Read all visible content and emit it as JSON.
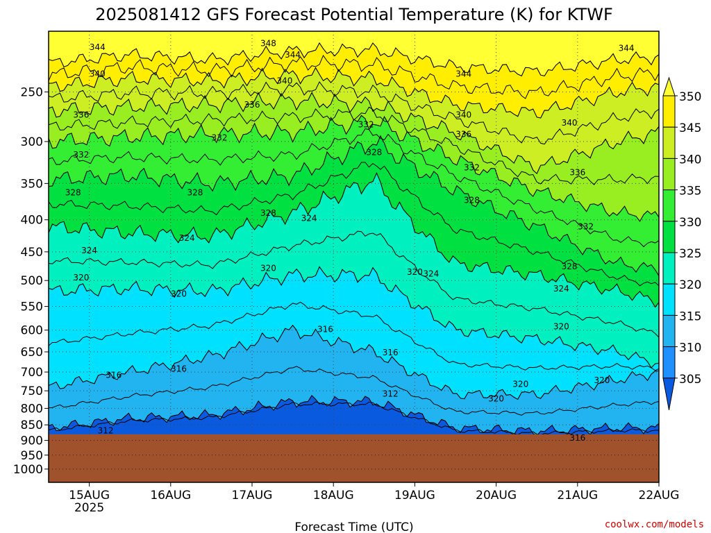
{
  "chart_data": {
    "type": "heatmap",
    "title": "2025081412 GFS Forecast Potential Temperature (K) for KTWF",
    "xlabel": "Forecast Time (UTC)",
    "ylabel": "",
    "y_scale": "log-pressure",
    "y_reversed": true,
    "y_ticks": [
      250,
      300,
      350,
      400,
      450,
      500,
      550,
      600,
      650,
      700,
      750,
      800,
      850,
      900,
      950,
      1000
    ],
    "ylim": [
      200,
      1050
    ],
    "x_ticks": [
      {
        "label": "15AUG",
        "sublabel": "2025",
        "day": 1
      },
      {
        "label": "16AUG",
        "sublabel": "",
        "day": 2
      },
      {
        "label": "17AUG",
        "sublabel": "",
        "day": 3
      },
      {
        "label": "18AUG",
        "sublabel": "",
        "day": 4
      },
      {
        "label": "19AUG",
        "sublabel": "",
        "day": 5
      },
      {
        "label": "20AUG",
        "sublabel": "",
        "day": 6
      },
      {
        "label": "21AUG",
        "sublabel": "",
        "day": 7
      },
      {
        "label": "22AUG",
        "sublabel": "",
        "day": 8
      }
    ],
    "xlim_days": [
      0.5,
      8.0
    ],
    "surface_pressure": 880,
    "surface_color": "#a0522d",
    "colorbar": {
      "levels": [
        "305",
        "310",
        "315",
        "320",
        "325",
        "330",
        "335",
        "340",
        "345",
        "350"
      ],
      "colors": [
        "#0a5ae0",
        "#1e90ff",
        "#22b4f0",
        "#00e0ff",
        "#00f0c0",
        "#00e040",
        "#33ee33",
        "#99ee22",
        "#ccee22",
        "#ffee00",
        "#ffff33"
      ],
      "extend": "both"
    },
    "series": [
      {
        "label": "344",
        "points": [
          [
            0.5,
            225
          ],
          [
            1.5,
            218
          ],
          [
            2.5,
            222
          ],
          [
            3.5,
            215
          ],
          [
            4.5,
            214
          ],
          [
            5.5,
            228
          ],
          [
            6.5,
            232
          ],
          [
            7.5,
            222
          ],
          [
            8,
            220
          ]
        ]
      },
      {
        "label": "340",
        "points": [
          [
            0.5,
            245
          ],
          [
            1.5,
            238
          ],
          [
            2.5,
            240
          ],
          [
            3.5,
            235
          ],
          [
            4.5,
            238
          ],
          [
            5.5,
            262
          ],
          [
            6.5,
            270
          ],
          [
            7.5,
            250
          ],
          [
            8,
            245
          ]
        ]
      },
      {
        "label": "336",
        "points": [
          [
            0.5,
            268
          ],
          [
            1.5,
            264
          ],
          [
            2.5,
            262
          ],
          [
            3.5,
            258
          ],
          [
            4.5,
            262
          ],
          [
            5.5,
            290
          ],
          [
            6.5,
            330
          ],
          [
            7.5,
            300
          ],
          [
            8,
            290
          ]
        ]
      },
      {
        "label": "332",
        "points": [
          [
            0.5,
            300
          ],
          [
            1.5,
            295
          ],
          [
            2.5,
            292
          ],
          [
            3.5,
            290
          ],
          [
            4.5,
            278
          ],
          [
            5.5,
            320
          ],
          [
            6.5,
            360
          ],
          [
            7.5,
            390
          ],
          [
            8,
            395
          ]
        ]
      },
      {
        "label": "328",
        "points": [
          [
            0.5,
            345
          ],
          [
            1.5,
            340
          ],
          [
            2.5,
            350
          ],
          [
            3.5,
            340
          ],
          [
            4.5,
            300
          ],
          [
            5.5,
            360
          ],
          [
            6.5,
            410
          ],
          [
            7.5,
            470
          ],
          [
            8,
            480
          ]
        ]
      },
      {
        "label": "324",
        "points": [
          [
            0.5,
            410
          ],
          [
            1.5,
            420
          ],
          [
            2.5,
            425
          ],
          [
            3.5,
            390
          ],
          [
            4.5,
            345
          ],
          [
            5.5,
            470
          ],
          [
            6.5,
            490
          ],
          [
            7.5,
            520
          ],
          [
            8,
            540
          ]
        ]
      },
      {
        "label": "320",
        "points": [
          [
            0.5,
            520
          ],
          [
            1.5,
            515
          ],
          [
            2.5,
            520
          ],
          [
            3.5,
            490
          ],
          [
            4.5,
            490
          ],
          [
            5.5,
            600
          ],
          [
            6.5,
            620
          ],
          [
            7.5,
            650
          ],
          [
            8,
            680
          ]
        ]
      },
      {
        "label": "316",
        "points": [
          [
            0.5,
            740
          ],
          [
            1.5,
            700
          ],
          [
            2.5,
            660
          ],
          [
            3.5,
            600
          ],
          [
            4.5,
            650
          ],
          [
            5.5,
            760
          ],
          [
            6.5,
            760
          ],
          [
            7.5,
            720
          ],
          [
            8,
            700
          ]
        ]
      },
      {
        "label": "312",
        "points": [
          [
            0.5,
            860
          ],
          [
            1.5,
            830
          ],
          [
            2.5,
            820
          ],
          [
            3.5,
            780
          ],
          [
            4.5,
            780
          ],
          [
            5.5,
            860
          ],
          [
            6.5,
            870
          ],
          [
            7.5,
            860
          ],
          [
            8,
            860
          ]
        ]
      }
    ],
    "contour_labels": [
      {
        "text": "344",
        "day": 1.1,
        "p": 212
      },
      {
        "text": "348",
        "day": 3.2,
        "p": 209
      },
      {
        "text": "344",
        "day": 3.5,
        "p": 218
      },
      {
        "text": "344",
        "day": 5.6,
        "p": 234
      },
      {
        "text": "344",
        "day": 7.6,
        "p": 213
      },
      {
        "text": "340",
        "day": 1.1,
        "p": 234
      },
      {
        "text": "340",
        "day": 3.4,
        "p": 240
      },
      {
        "text": "340",
        "day": 5.6,
        "p": 272
      },
      {
        "text": "340",
        "day": 6.9,
        "p": 280
      },
      {
        "text": "336",
        "day": 0.9,
        "p": 272
      },
      {
        "text": "336",
        "day": 3.0,
        "p": 262
      },
      {
        "text": "336",
        "day": 5.6,
        "p": 292
      },
      {
        "text": "336",
        "day": 7.0,
        "p": 336
      },
      {
        "text": "332",
        "day": 0.9,
        "p": 315
      },
      {
        "text": "332",
        "day": 2.6,
        "p": 296
      },
      {
        "text": "332",
        "day": 4.4,
        "p": 282
      },
      {
        "text": "332",
        "day": 5.7,
        "p": 330
      },
      {
        "text": "332",
        "day": 7.1,
        "p": 410
      },
      {
        "text": "328",
        "day": 0.8,
        "p": 362
      },
      {
        "text": "328",
        "day": 2.3,
        "p": 362
      },
      {
        "text": "328",
        "day": 3.2,
        "p": 390
      },
      {
        "text": "328",
        "day": 4.5,
        "p": 312
      },
      {
        "text": "328",
        "day": 5.7,
        "p": 372
      },
      {
        "text": "328",
        "day": 6.9,
        "p": 475
      },
      {
        "text": "324",
        "day": 1.0,
        "p": 448
      },
      {
        "text": "324",
        "day": 2.2,
        "p": 428
      },
      {
        "text": "324",
        "day": 3.7,
        "p": 398
      },
      {
        "text": "324",
        "day": 5.2,
        "p": 488
      },
      {
        "text": "324",
        "day": 6.8,
        "p": 515
      },
      {
        "text": "320",
        "day": 0.9,
        "p": 495
      },
      {
        "text": "320",
        "day": 2.1,
        "p": 525
      },
      {
        "text": "320",
        "day": 3.2,
        "p": 478
      },
      {
        "text": "320",
        "day": 5.0,
        "p": 485
      },
      {
        "text": "320",
        "day": 6.8,
        "p": 592
      },
      {
        "text": "320",
        "day": 6.3,
        "p": 732
      },
      {
        "text": "320",
        "day": 7.3,
        "p": 722
      },
      {
        "text": "320",
        "day": 6.0,
        "p": 772
      },
      {
        "text": "316",
        "day": 1.3,
        "p": 708
      },
      {
        "text": "316",
        "day": 2.1,
        "p": 692
      },
      {
        "text": "316",
        "day": 3.9,
        "p": 598
      },
      {
        "text": "316",
        "day": 4.7,
        "p": 652
      },
      {
        "text": "316",
        "day": 7.0,
        "p": 892
      },
      {
        "text": "312",
        "day": 1.2,
        "p": 868
      },
      {
        "text": "312",
        "day": 4.7,
        "p": 758
      }
    ],
    "credit": "coolwx.com/models"
  }
}
